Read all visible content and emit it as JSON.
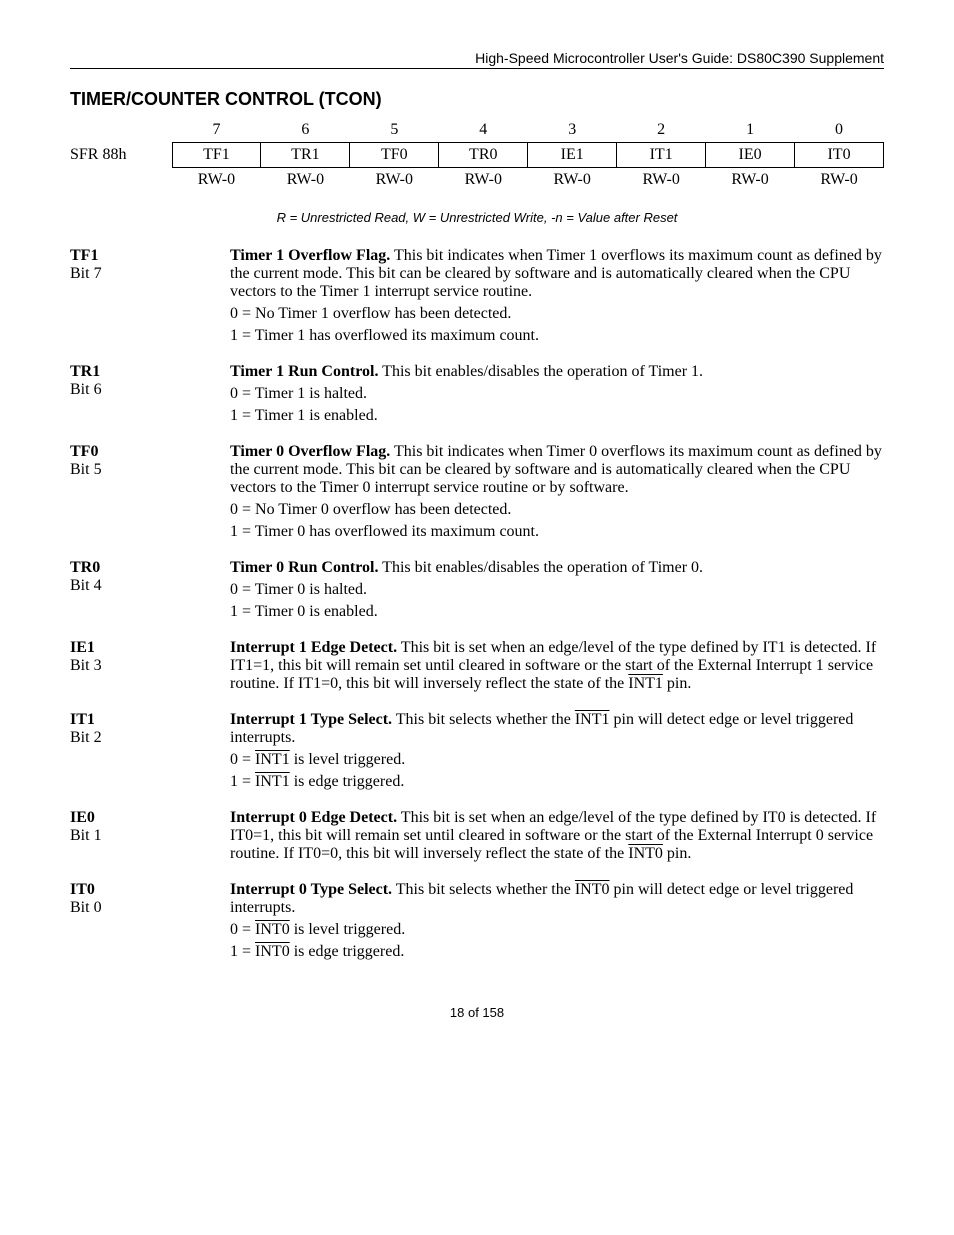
{
  "header": "High-Speed Microcontroller User's Guide: DS80C390 Supplement",
  "title": "TIMER/COUNTER CONTROL (TCON)",
  "sfr_label": "SFR 88h",
  "bit_numbers": [
    "7",
    "6",
    "5",
    "4",
    "3",
    "2",
    "1",
    "0"
  ],
  "bit_names": [
    "TF1",
    "TR1",
    "TF0",
    "TR0",
    "IE1",
    "IT1",
    "IE0",
    "IT0"
  ],
  "rw": [
    "RW-0",
    "RW-0",
    "RW-0",
    "RW-0",
    "RW-0",
    "RW-0",
    "RW-0",
    "RW-0"
  ],
  "legend": "R = Unrestricted Read, W = Unrestricted Write, -n = Value after Reset",
  "bits": [
    {
      "name": "TF1",
      "pos": "Bit 7",
      "title": "Timer 1 Overflow Flag.",
      "body": "This bit indicates when Timer 1 overflows its maximum count as defined by the current mode.  This bit can be cleared by software and is automatically cleared when the CPU vectors to the Timer 1 interrupt service routine.",
      "lines": [
        "0 = No Timer 1 overflow has been detected.",
        "1 = Timer 1 has overflowed its maximum count."
      ]
    },
    {
      "name": "TR1",
      "pos": "Bit 6",
      "title": "Timer 1 Run Control.",
      "body": "This bit enables/disables the operation of Timer 1.",
      "lines": [
        "0 = Timer 1 is halted.",
        "1 = Timer 1 is enabled."
      ]
    },
    {
      "name": "TF0",
      "pos": "Bit 5",
      "title": "Timer 0 Overflow Flag.",
      "body": "This bit indicates when Timer 0 overflows its maximum count as defined by the current mode.  This bit can be cleared by software and is automatically cleared when the CPU vectors to the Timer 0 interrupt service routine or by software.",
      "lines": [
        "0 = No Timer 0 overflow has been detected.",
        "1 = Timer 0 has overflowed its maximum count."
      ]
    },
    {
      "name": "TR0",
      "pos": "Bit 4",
      "title": "Timer 0 Run Control.",
      "body": "This bit enables/disables the operation of Timer 0.",
      "lines": [
        "0 = Timer 0 is halted.",
        "1 = Timer 0 is enabled."
      ]
    },
    {
      "name": "IE1",
      "pos": "Bit 3",
      "title": "Interrupt 1 Edge Detect.",
      "body_html": "This bit is set when an edge/level of the type defined by IT1 is detected.  If IT1=1, this bit will remain set until cleared in software or the start of the External Interrupt 1 service routine.  If IT1=0, this bit will inversely reflect the state of the <span class=\"overline\">INT1</span> pin.",
      "lines": []
    },
    {
      "name": "IT1",
      "pos": "Bit 2",
      "title": "Interrupt 1 Type Select.",
      "body_html": "This bit selects whether the <span class=\"overline\">INT1</span> pin will detect edge or level triggered interrupts.",
      "lines_html": [
        "0 = <span class=\"overline\">INT1</span>  is level triggered.",
        "1 = <span class=\"overline\">INT1</span>  is edge triggered."
      ]
    },
    {
      "name": "IE0",
      "pos": "Bit 1",
      "title": "Interrupt 0 Edge Detect.",
      "body_html": "This bit is set when an edge/level of the type defined by IT0 is detected.  If IT0=1, this bit will remain set until cleared in software or the start of the External Interrupt 0 service routine.  If IT0=0, this bit will inversely reflect the state of the <span class=\"overline\">INT0</span>  pin.",
      "lines": []
    },
    {
      "name": "IT0",
      "pos": "Bit 0",
      "title": "Interrupt 0 Type Select.",
      "body_html": "This bit selects whether the <span class=\"overline\">INT0</span>  pin will detect edge or level triggered interrupts.",
      "lines_html": [
        "0 = <span class=\"overline\">INT0</span>  is level triggered.",
        "1 = <span class=\"overline\">INT0</span>  is edge triggered."
      ]
    }
  ],
  "footer": "18 of 158"
}
